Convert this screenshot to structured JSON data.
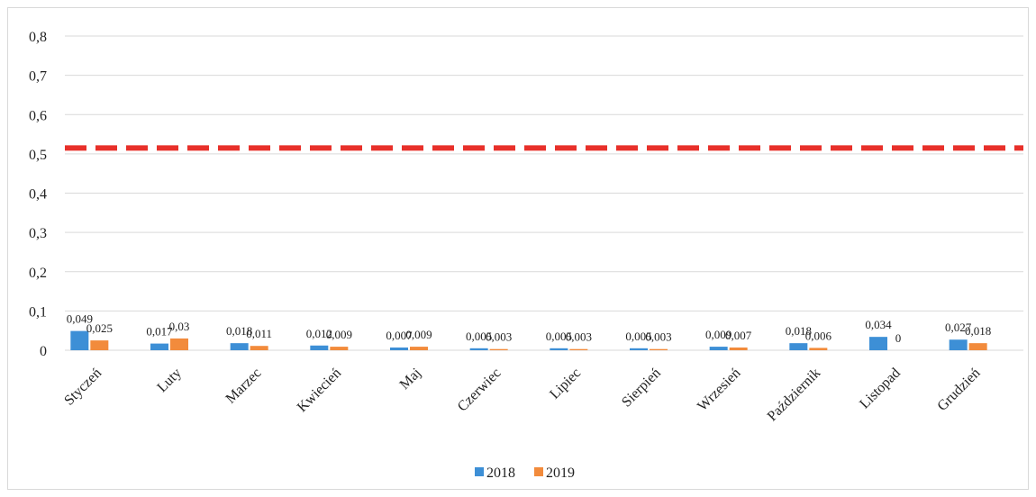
{
  "chart_data": {
    "type": "bar",
    "categories": [
      "Styczeń",
      "Luty",
      "Marzec",
      "Kwiecień",
      "Maj",
      "Czerwiec",
      "Lipiec",
      "Sierpień",
      "Wrzesień",
      "Październik",
      "Listopad",
      "Grudzień"
    ],
    "series": [
      {
        "name": "2018",
        "color": "#3d8fd6",
        "values": [
          0.049,
          0.017,
          0.018,
          0.012,
          0.007,
          0.005,
          0.005,
          0.005,
          0.009,
          0.018,
          0.034,
          0.027
        ],
        "labels": [
          "0,049",
          "0,017",
          "0,018",
          "0,012",
          "0,007",
          "0,005",
          "0,005",
          "0,005",
          "0,009",
          "0,018",
          "0,034",
          "0,027"
        ]
      },
      {
        "name": "2019",
        "color": "#f28b3c",
        "values": [
          0.025,
          0.03,
          0.011,
          0.009,
          0.009,
          0.003,
          0.003,
          0.003,
          0.007,
          0.006,
          0,
          0.018
        ],
        "labels": [
          "0,025",
          "0,03",
          "0,011",
          "0,009",
          "0,009",
          "0,003",
          "0,003",
          "0,003",
          "0,007",
          "0,006",
          "0",
          "0,018"
        ]
      }
    ],
    "reference_line": {
      "value": 0.515,
      "style": "dashed",
      "color": "#e8302a"
    },
    "yticks": [
      0,
      0.1,
      0.2,
      0.3,
      0.4,
      0.5,
      0.6,
      0.7,
      0.8
    ],
    "ytick_labels": [
      "0",
      "0,1",
      "0,2",
      "0,3",
      "0,4",
      "0,5",
      "0,6",
      "0,7",
      "0,8"
    ],
    "ylim": [
      0,
      0.8
    ],
    "grid": true,
    "legend": "bottom-center"
  }
}
